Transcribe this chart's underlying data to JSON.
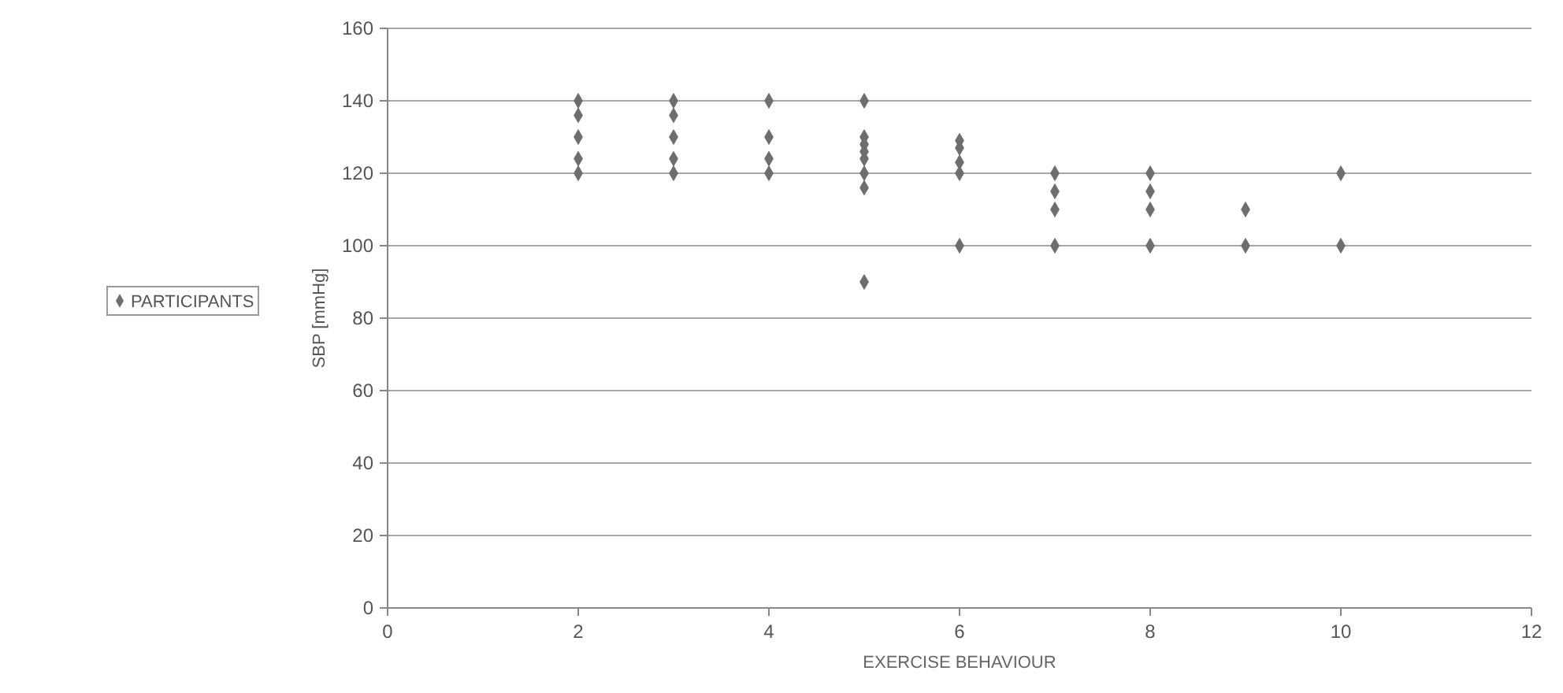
{
  "chart_data": {
    "type": "scatter",
    "xlabel": "EXERCISE BEHAVIOUR",
    "ylabel": "SBP [mmHg]",
    "xlim": [
      0,
      12
    ],
    "xticks": [
      0,
      2,
      4,
      6,
      8,
      10,
      12
    ],
    "ylim": [
      0,
      160
    ],
    "yticks": [
      0,
      20,
      40,
      60,
      80,
      100,
      120,
      140,
      160
    ],
    "grid": "y",
    "legend": "left",
    "marker": "diamond",
    "series": [
      {
        "name": "PARTICIPANTS",
        "color": "#6e6e6e",
        "x": [
          2,
          2,
          2,
          2,
          2,
          3,
          3,
          3,
          3,
          3,
          4,
          4,
          4,
          4,
          5,
          5,
          5,
          5,
          5,
          5,
          5,
          5,
          6,
          6,
          6,
          6,
          6,
          7,
          7,
          7,
          7,
          8,
          8,
          8,
          8,
          9,
          9,
          10,
          10
        ],
        "values": [
          140,
          136,
          130,
          124,
          120,
          140,
          136,
          130,
          124,
          120,
          140,
          130,
          124,
          120,
          140,
          130,
          128,
          126,
          124,
          120,
          116,
          90,
          129,
          127,
          123,
          120,
          100,
          120,
          115,
          110,
          100,
          120,
          115,
          110,
          100,
          110,
          100,
          120,
          100
        ]
      }
    ]
  }
}
